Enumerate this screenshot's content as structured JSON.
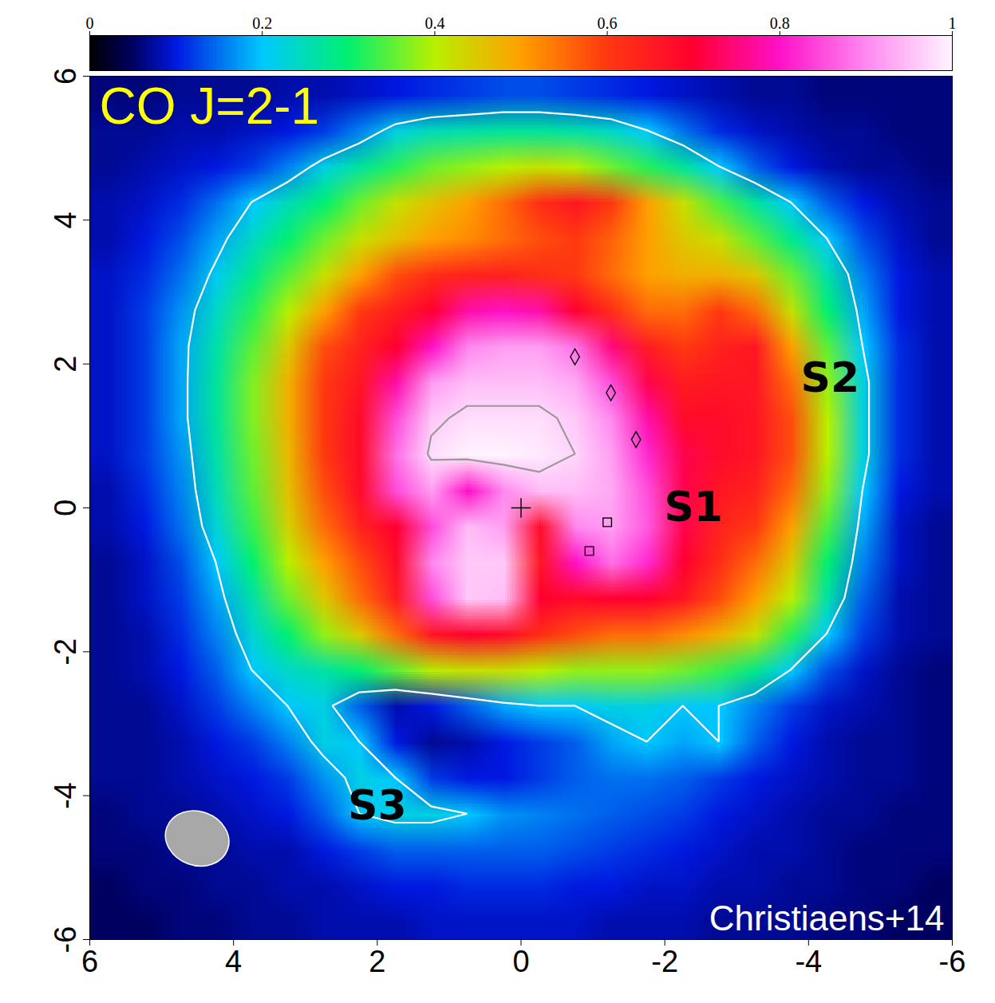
{
  "chart_data": {
    "type": "heatmap",
    "title": "CO J=2-1",
    "caption": "Christiaens+14",
    "x": [
      5.75,
      5.25,
      4.75,
      4.25,
      3.75,
      3.25,
      2.75,
      2.25,
      1.75,
      1.25,
      0.75,
      0.25,
      -0.25,
      -0.75,
      -1.25,
      -1.75,
      -2.25,
      -2.75,
      -3.25,
      -3.75,
      -4.25,
      -4.75,
      -5.25,
      -5.75
    ],
    "y": [
      5.75,
      5.25,
      4.75,
      4.25,
      3.75,
      3.25,
      2.75,
      2.25,
      1.75,
      1.25,
      0.75,
      0.25,
      -0.25,
      -0.75,
      -1.25,
      -1.75,
      -2.25,
      -2.75,
      -3.25,
      -3.75,
      -4.25,
      -4.75,
      -5.25,
      -5.75
    ],
    "values": [
      [
        0.06,
        0.06,
        0.07,
        0.07,
        0.07,
        0.08,
        0.08,
        0.09,
        0.1,
        0.11,
        0.12,
        0.13,
        0.13,
        0.12,
        0.11,
        0.1,
        0.09,
        0.08,
        0.07,
        0.07,
        0.06,
        0.06,
        0.06,
        0.06
      ],
      [
        0.07,
        0.07,
        0.08,
        0.08,
        0.09,
        0.1,
        0.12,
        0.16,
        0.22,
        0.25,
        0.26,
        0.27,
        0.27,
        0.26,
        0.24,
        0.2,
        0.15,
        0.11,
        0.09,
        0.08,
        0.07,
        0.07,
        0.06,
        0.06
      ],
      [
        0.07,
        0.08,
        0.09,
        0.1,
        0.12,
        0.16,
        0.22,
        0.27,
        0.32,
        0.36,
        0.38,
        0.4,
        0.42,
        0.4,
        0.36,
        0.32,
        0.27,
        0.2,
        0.14,
        0.1,
        0.08,
        0.07,
        0.07,
        0.06
      ],
      [
        0.08,
        0.09,
        0.11,
        0.15,
        0.2,
        0.25,
        0.3,
        0.36,
        0.42,
        0.46,
        0.5,
        0.55,
        0.62,
        0.66,
        0.6,
        0.5,
        0.42,
        0.34,
        0.27,
        0.2,
        0.14,
        0.1,
        0.08,
        0.07
      ],
      [
        0.08,
        0.1,
        0.13,
        0.18,
        0.24,
        0.3,
        0.36,
        0.42,
        0.46,
        0.5,
        0.52,
        0.55,
        0.58,
        0.6,
        0.56,
        0.5,
        0.45,
        0.42,
        0.35,
        0.28,
        0.2,
        0.13,
        0.09,
        0.07
      ],
      [
        0.09,
        0.11,
        0.15,
        0.21,
        0.28,
        0.35,
        0.42,
        0.5,
        0.58,
        0.62,
        0.64,
        0.64,
        0.62,
        0.6,
        0.55,
        0.5,
        0.48,
        0.48,
        0.45,
        0.36,
        0.26,
        0.16,
        0.1,
        0.08
      ],
      [
        0.09,
        0.12,
        0.17,
        0.24,
        0.32,
        0.4,
        0.5,
        0.6,
        0.65,
        0.7,
        0.78,
        0.8,
        0.78,
        0.7,
        0.62,
        0.55,
        0.55,
        0.6,
        0.55,
        0.42,
        0.3,
        0.18,
        0.1,
        0.08
      ],
      [
        0.09,
        0.12,
        0.18,
        0.26,
        0.35,
        0.45,
        0.58,
        0.64,
        0.7,
        0.8,
        0.9,
        0.92,
        0.92,
        0.88,
        0.75,
        0.65,
        0.6,
        0.64,
        0.66,
        0.5,
        0.35,
        0.2,
        0.11,
        0.08
      ],
      [
        0.09,
        0.12,
        0.18,
        0.27,
        0.37,
        0.48,
        0.6,
        0.66,
        0.78,
        0.92,
        0.95,
        0.95,
        0.95,
        0.93,
        0.85,
        0.72,
        0.65,
        0.66,
        0.66,
        0.55,
        0.38,
        0.22,
        0.11,
        0.08
      ],
      [
        0.09,
        0.12,
        0.18,
        0.27,
        0.37,
        0.48,
        0.6,
        0.68,
        0.85,
        0.96,
        0.98,
        0.98,
        0.98,
        0.96,
        0.9,
        0.78,
        0.68,
        0.68,
        0.66,
        0.58,
        0.4,
        0.22,
        0.11,
        0.08
      ],
      [
        0.09,
        0.12,
        0.17,
        0.26,
        0.36,
        0.47,
        0.6,
        0.68,
        0.88,
        0.98,
        1,
        1,
        0.99,
        0.97,
        0.92,
        0.82,
        0.72,
        0.68,
        0.66,
        0.58,
        0.4,
        0.22,
        0.11,
        0.08
      ],
      [
        0.08,
        0.11,
        0.16,
        0.25,
        0.35,
        0.46,
        0.58,
        0.68,
        0.85,
        0.92,
        0.8,
        0.9,
        0.95,
        0.95,
        0.93,
        0.85,
        0.72,
        0.66,
        0.64,
        0.55,
        0.38,
        0.2,
        0.1,
        0.08
      ],
      [
        0.08,
        0.1,
        0.15,
        0.23,
        0.33,
        0.44,
        0.55,
        0.64,
        0.7,
        0.85,
        0.95,
        0.92,
        0.68,
        0.9,
        0.92,
        0.86,
        0.72,
        0.64,
        0.6,
        0.5,
        0.34,
        0.18,
        0.09,
        0.07
      ],
      [
        0.07,
        0.09,
        0.13,
        0.2,
        0.3,
        0.4,
        0.5,
        0.58,
        0.68,
        0.9,
        0.96,
        0.96,
        0.66,
        0.8,
        0.88,
        0.82,
        0.7,
        0.62,
        0.55,
        0.45,
        0.3,
        0.16,
        0.09,
        0.07
      ],
      [
        0.07,
        0.09,
        0.12,
        0.18,
        0.26,
        0.36,
        0.45,
        0.55,
        0.65,
        0.85,
        0.96,
        0.95,
        0.7,
        0.68,
        0.7,
        0.7,
        0.66,
        0.58,
        0.5,
        0.4,
        0.26,
        0.14,
        0.08,
        0.07
      ],
      [
        0.07,
        0.08,
        0.11,
        0.16,
        0.23,
        0.3,
        0.38,
        0.45,
        0.55,
        0.66,
        0.7,
        0.68,
        0.62,
        0.58,
        0.55,
        0.55,
        0.52,
        0.48,
        0.42,
        0.32,
        0.2,
        0.12,
        0.08,
        0.07
      ],
      [
        0.07,
        0.08,
        0.1,
        0.14,
        0.2,
        0.24,
        0.26,
        0.3,
        0.35,
        0.4,
        0.42,
        0.42,
        0.4,
        0.38,
        0.38,
        0.38,
        0.36,
        0.33,
        0.28,
        0.2,
        0.13,
        0.09,
        0.07,
        0.06
      ],
      [
        0.07,
        0.07,
        0.09,
        0.12,
        0.16,
        0.2,
        0.22,
        0.14,
        0.08,
        0.1,
        0.14,
        0.18,
        0.2,
        0.2,
        0.22,
        0.22,
        0.2,
        0.2,
        0.16,
        0.12,
        0.09,
        0.08,
        0.07,
        0.06
      ],
      [
        0.07,
        0.07,
        0.08,
        0.1,
        0.12,
        0.16,
        0.22,
        0.2,
        0.1,
        0.07,
        0.08,
        0.1,
        0.12,
        0.14,
        0.18,
        0.2,
        0.18,
        0.2,
        0.14,
        0.1,
        0.08,
        0.07,
        0.07,
        0.06
      ],
      [
        0.07,
        0.07,
        0.08,
        0.09,
        0.1,
        0.12,
        0.17,
        0.22,
        0.2,
        0.12,
        0.1,
        0.1,
        0.12,
        0.14,
        0.15,
        0.15,
        0.14,
        0.12,
        0.1,
        0.09,
        0.08,
        0.07,
        0.07,
        0.06
      ],
      [
        0.06,
        0.07,
        0.07,
        0.08,
        0.09,
        0.1,
        0.14,
        0.2,
        0.22,
        0.22,
        0.2,
        0.17,
        0.16,
        0.15,
        0.14,
        0.13,
        0.12,
        0.1,
        0.09,
        0.08,
        0.07,
        0.07,
        0.06,
        0.06
      ],
      [
        0.06,
        0.06,
        0.07,
        0.07,
        0.08,
        0.08,
        0.1,
        0.12,
        0.14,
        0.14,
        0.14,
        0.14,
        0.14,
        0.13,
        0.12,
        0.11,
        0.1,
        0.09,
        0.08,
        0.08,
        0.07,
        0.06,
        0.06,
        0.06
      ],
      [
        0.05,
        0.06,
        0.06,
        0.07,
        0.07,
        0.08,
        0.08,
        0.09,
        0.1,
        0.1,
        0.11,
        0.11,
        0.11,
        0.1,
        0.1,
        0.09,
        0.09,
        0.08,
        0.08,
        0.07,
        0.07,
        0.06,
        0.06,
        0.05
      ],
      [
        0.05,
        0.05,
        0.06,
        0.06,
        0.07,
        0.07,
        0.08,
        0.08,
        0.08,
        0.09,
        0.09,
        0.09,
        0.09,
        0.09,
        0.08,
        0.08,
        0.08,
        0.07,
        0.07,
        0.07,
        0.06,
        0.06,
        0.05,
        0.05
      ]
    ],
    "xlim": [
      6,
      -6
    ],
    "ylim": [
      -6,
      6
    ],
    "xticks": [
      6,
      4,
      2,
      0,
      -2,
      -4,
      -6
    ],
    "yticks": [
      6,
      4,
      2,
      0,
      -2,
      -4,
      -6
    ],
    "colorbar": {
      "range": [
        0,
        1
      ],
      "ticks": [
        0,
        0.2,
        0.4,
        0.6,
        0.8,
        1
      ]
    },
    "contours": [
      0.2,
      0.97
    ],
    "annotations": [
      {
        "text": "S1",
        "x": -2.4,
        "y": 0
      },
      {
        "text": "S2",
        "x": -4.3,
        "y": 1.8
      },
      {
        "text": "S3",
        "x": 2.0,
        "y": -4.15
      }
    ],
    "markers": [
      {
        "x": 0,
        "y": 0,
        "marker": "plus"
      },
      {
        "x": -0.75,
        "y": 2.1,
        "marker": "diamond"
      },
      {
        "x": -1.25,
        "y": 1.6,
        "marker": "diamond"
      },
      {
        "x": -1.6,
        "y": 0.95,
        "marker": "diamond"
      },
      {
        "x": -1.2,
        "y": -0.2,
        "marker": "square"
      },
      {
        "x": -0.95,
        "y": -0.6,
        "marker": "square"
      }
    ],
    "beam": {
      "x": 4.5,
      "y": -4.6,
      "major": 0.9,
      "minor": 0.75
    }
  }
}
